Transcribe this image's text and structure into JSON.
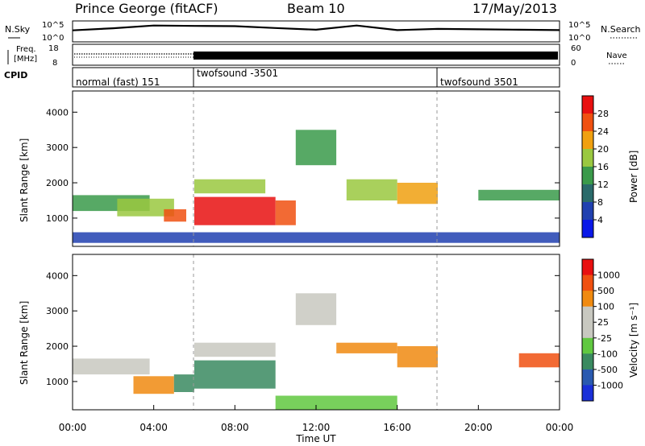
{
  "header": {
    "radar": "Prince George (fitACF)",
    "beam": "Beam 10",
    "date": "17/May/2013"
  },
  "chart_data": [
    {
      "type": "line",
      "name": "noise-panel",
      "left_label": "N.Sky",
      "right_label": "N.Search",
      "left_ticks": [
        "10^5",
        "10^0"
      ],
      "right_ticks": [
        "10^5",
        "10^0"
      ],
      "x": [
        0,
        2,
        4,
        6,
        8,
        10,
        12,
        14,
        16,
        18,
        20,
        22,
        24
      ],
      "values": [
        0.55,
        0.65,
        0.78,
        0.76,
        0.75,
        0.66,
        0.58,
        0.78,
        0.56,
        0.62,
        0.6,
        0.58,
        0.56
      ]
    },
    {
      "type": "line",
      "name": "freq-nave-panel",
      "left_label_line1": "Freq.",
      "left_label_line2": "[MHz]",
      "left_ticks": [
        "18",
        "8"
      ],
      "right_ticks": [
        "60",
        "0"
      ],
      "right_label": "Nave",
      "note_dotted_until_hour": 6
    },
    {
      "type": "table",
      "name": "cpid-strip",
      "label": "CPID",
      "modes": [
        {
          "label": "normal (fast) 151",
          "start_hour": 0
        },
        {
          "label": "twofsound -3501",
          "start_hour": 6
        },
        {
          "label": "twofsound 3501",
          "start_hour": 18
        }
      ]
    },
    {
      "type": "heatmap",
      "name": "power-panel",
      "ylabel": "Slant Range [km]",
      "ylim": [
        200,
        4600
      ],
      "yticks": [
        1000,
        2000,
        3000,
        4000
      ],
      "colorbar_label": "Power [dB]",
      "colorbar_ticks": [
        4,
        8,
        12,
        16,
        20,
        24,
        28
      ],
      "colorbar_colors": [
        "#0a18e8",
        "#2040b0",
        "#2a6a6a",
        "#3a9a4a",
        "#9ac840",
        "#f0a010",
        "#f05010",
        "#e81010"
      ],
      "regions": [
        {
          "t0": 0.0,
          "t1": 3.8,
          "r0": 1200,
          "r1": 1650,
          "color": "#3a9a4a"
        },
        {
          "t0": 2.2,
          "t1": 5.0,
          "r0": 1050,
          "r1": 1550,
          "color": "#9ac840"
        },
        {
          "t0": 4.5,
          "t1": 5.6,
          "r0": 900,
          "r1": 1250,
          "color": "#f05010"
        },
        {
          "t0": 6.0,
          "t1": 10.0,
          "r0": 800,
          "r1": 1600,
          "color": "#e81010"
        },
        {
          "t0": 6.0,
          "t1": 9.5,
          "r0": 1700,
          "r1": 2100,
          "color": "#9ac840"
        },
        {
          "t0": 10.0,
          "t1": 11.0,
          "r0": 800,
          "r1": 1500,
          "color": "#f05010"
        },
        {
          "t0": 11.0,
          "t1": 13.0,
          "r0": 2500,
          "r1": 3500,
          "color": "#3a9a4a"
        },
        {
          "t0": 13.5,
          "t1": 16.0,
          "r0": 1500,
          "r1": 2100,
          "color": "#9ac840"
        },
        {
          "t0": 16.0,
          "t1": 18.0,
          "r0": 1400,
          "r1": 2000,
          "color": "#f0a010"
        },
        {
          "t0": 0.0,
          "t1": 24.0,
          "r0": 300,
          "r1": 600,
          "color": "#2040b0"
        },
        {
          "t0": 20.0,
          "t1": 24.0,
          "r0": 1500,
          "r1": 1800,
          "color": "#3a9a4a"
        }
      ]
    },
    {
      "type": "heatmap",
      "name": "velocity-panel",
      "ylabel": "Slant Range [km]",
      "ylim": [
        200,
        4600
      ],
      "yticks": [
        1000,
        2000,
        3000,
        4000
      ],
      "xlabel": "Time UT",
      "xticks": [
        "00:00",
        "04:00",
        "08:00",
        "12:00",
        "16:00",
        "20:00",
        "00:00"
      ],
      "colorbar_label": "Velocity [m s⁻¹]",
      "colorbar_ticks": [
        "1000",
        "500",
        "100",
        "25",
        "-25",
        "-100",
        "-500",
        "-1000"
      ],
      "colorbar_colors": [
        "#1a30d8",
        "#2a5ab0",
        "#3a8a60",
        "#60c840",
        "#c8c8c0",
        "#c8c8c0",
        "#f08a10",
        "#f05010",
        "#e81010"
      ],
      "regions": [
        {
          "t0": 0.0,
          "t1": 3.8,
          "r0": 1200,
          "r1": 1650,
          "color": "#c8c8c0"
        },
        {
          "t0": 3.0,
          "t1": 5.0,
          "r0": 650,
          "r1": 1150,
          "color": "#f08a10"
        },
        {
          "t0": 5.0,
          "t1": 6.0,
          "r0": 700,
          "r1": 1200,
          "color": "#3a8a60"
        },
        {
          "t0": 6.0,
          "t1": 10.0,
          "r0": 800,
          "r1": 1600,
          "color": "#3a8a60"
        },
        {
          "t0": 6.0,
          "t1": 10.0,
          "r0": 1700,
          "r1": 2100,
          "color": "#c8c8c0"
        },
        {
          "t0": 11.0,
          "t1": 13.0,
          "r0": 2600,
          "r1": 3500,
          "color": "#c8c8c0"
        },
        {
          "t0": 13.0,
          "t1": 16.0,
          "r0": 1800,
          "r1": 2100,
          "color": "#f08a10"
        },
        {
          "t0": 16.0,
          "t1": 18.0,
          "r0": 1400,
          "r1": 2000,
          "color": "#f08a10"
        },
        {
          "t0": 10.0,
          "t1": 16.0,
          "r0": 200,
          "r1": 600,
          "color": "#60c840"
        },
        {
          "t0": 22.0,
          "t1": 24.0,
          "r0": 1400,
          "r1": 1800,
          "color": "#f05010"
        }
      ]
    }
  ]
}
